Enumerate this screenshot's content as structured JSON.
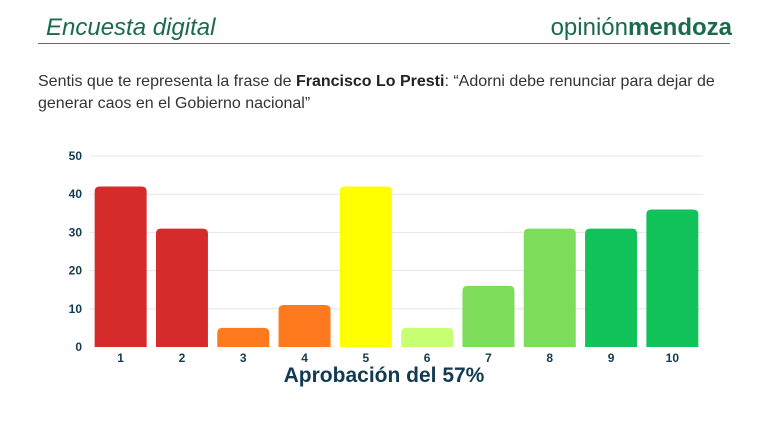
{
  "header": {
    "title": "Encuesta digital",
    "brand_light": "opinión",
    "brand_bold": "mendoza"
  },
  "question": {
    "prefix": "Sentis que te representa la frase de ",
    "author": "Francisco Lo Presti",
    "suffix": ": “Adorni debe renunciar para dejar de generar caos en el Gobierno nacional”"
  },
  "colors": {
    "brand": "#1a6b4a",
    "rule": "#2e8a5e",
    "axis_text": "#123a52",
    "grid": "#e6e6e6"
  },
  "chart_data": {
    "type": "bar",
    "categories": [
      "1",
      "2",
      "3",
      "4",
      "5",
      "6",
      "7",
      "8",
      "9",
      "10"
    ],
    "values": [
      42,
      31,
      5,
      11,
      42,
      5,
      16,
      31,
      31,
      36
    ],
    "colors": [
      "#d62b2b",
      "#d62b2b",
      "#ff7a1f",
      "#ff7a1f",
      "#ffff00",
      "#c6ff72",
      "#7ddc5a",
      "#7ddc5a",
      "#12c25a",
      "#12c25a"
    ],
    "ylim": [
      0,
      50
    ],
    "yticks": [
      0,
      10,
      20,
      30,
      40,
      50
    ],
    "grid": true,
    "xlabel": "Aprobación del 57%",
    "ylabel": "",
    "title": ""
  }
}
